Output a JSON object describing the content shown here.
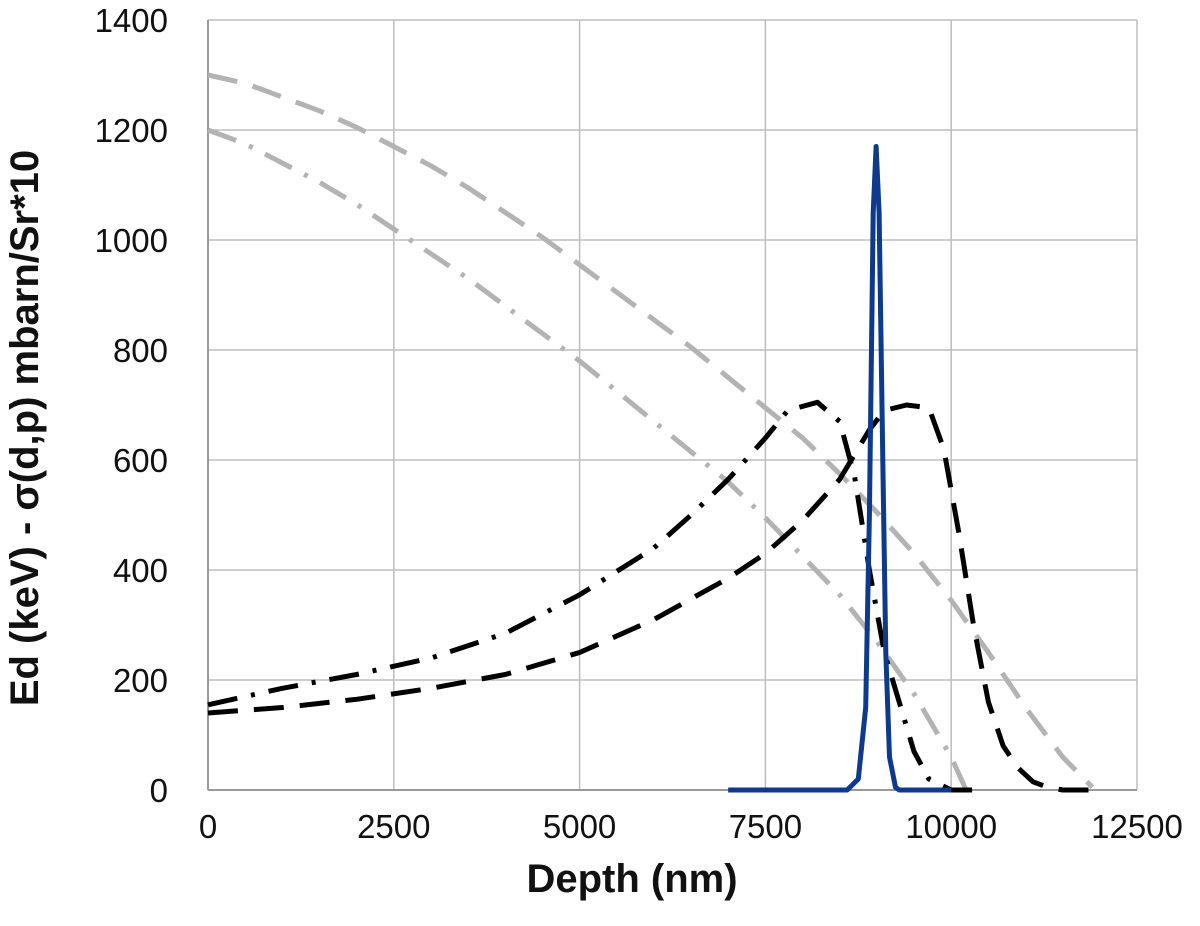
{
  "chart_data": {
    "type": "line",
    "title": "",
    "xlabel": "Depth (nm)",
    "ylabel": "Ed (keV) - σ(d,p) mbarn/Sr*10",
    "xlim": [
      0,
      12500
    ],
    "ylim": [
      0,
      1400
    ],
    "xticks": [
      0,
      2500,
      5000,
      7500,
      10000,
      12500
    ],
    "yticks": [
      0,
      200,
      400,
      600,
      800,
      1000,
      1200,
      1400
    ],
    "grid": true,
    "legend": "none",
    "series": [
      {
        "style": "dash",
        "color": "#b3b3b3",
        "points": [
          [
            0,
            1300
          ],
          [
            500,
            1285
          ],
          [
            1000,
            1260
          ],
          [
            1500,
            1235
          ],
          [
            2000,
            1205
          ],
          [
            2500,
            1170
          ],
          [
            3000,
            1135
          ],
          [
            3500,
            1095
          ],
          [
            4000,
            1050
          ],
          [
            4500,
            1005
          ],
          [
            5000,
            955
          ],
          [
            5500,
            905
          ],
          [
            6000,
            855
          ],
          [
            6500,
            805
          ],
          [
            7000,
            750
          ],
          [
            7500,
            695
          ],
          [
            8000,
            640
          ],
          [
            8500,
            575
          ],
          [
            9000,
            505
          ],
          [
            9500,
            430
          ],
          [
            10000,
            345
          ],
          [
            10500,
            250
          ],
          [
            11000,
            150
          ],
          [
            11500,
            60
          ],
          [
            11900,
            5
          ]
        ]
      },
      {
        "style": "dashdot",
        "color": "#b3b3b3",
        "points": [
          [
            0,
            1200
          ],
          [
            500,
            1175
          ],
          [
            1000,
            1140
          ],
          [
            1500,
            1105
          ],
          [
            2000,
            1065
          ],
          [
            2500,
            1020
          ],
          [
            3000,
            975
          ],
          [
            3500,
            930
          ],
          [
            4000,
            880
          ],
          [
            4500,
            830
          ],
          [
            5000,
            780
          ],
          [
            5500,
            725
          ],
          [
            6000,
            670
          ],
          [
            6500,
            615
          ],
          [
            7000,
            560
          ],
          [
            7500,
            495
          ],
          [
            8000,
            425
          ],
          [
            8500,
            355
          ],
          [
            9000,
            270
          ],
          [
            9500,
            175
          ],
          [
            10000,
            60
          ],
          [
            10200,
            0
          ]
        ]
      },
      {
        "style": "dashdot",
        "color": "#000000",
        "points": [
          [
            0,
            155
          ],
          [
            1000,
            185
          ],
          [
            2000,
            210
          ],
          [
            3000,
            240
          ],
          [
            4000,
            285
          ],
          [
            5000,
            355
          ],
          [
            6000,
            440
          ],
          [
            6500,
            500
          ],
          [
            7000,
            565
          ],
          [
            7500,
            640
          ],
          [
            7800,
            690
          ],
          [
            8200,
            705
          ],
          [
            8500,
            670
          ],
          [
            8700,
            570
          ],
          [
            8900,
            400
          ],
          [
            9100,
            250
          ],
          [
            9300,
            160
          ],
          [
            9500,
            70
          ],
          [
            9700,
            20
          ],
          [
            10000,
            0
          ],
          [
            10300,
            0
          ]
        ]
      },
      {
        "style": "dash",
        "color": "#000000",
        "points": [
          [
            0,
            140
          ],
          [
            1000,
            150
          ],
          [
            2000,
            165
          ],
          [
            3000,
            185
          ],
          [
            4000,
            210
          ],
          [
            5000,
            250
          ],
          [
            6000,
            310
          ],
          [
            7000,
            385
          ],
          [
            7500,
            430
          ],
          [
            8000,
            490
          ],
          [
            8500,
            565
          ],
          [
            8700,
            610
          ],
          [
            8900,
            655
          ],
          [
            9100,
            690
          ],
          [
            9400,
            700
          ],
          [
            9700,
            695
          ],
          [
            9900,
            620
          ],
          [
            10100,
            470
          ],
          [
            10300,
            300
          ],
          [
            10500,
            160
          ],
          [
            10700,
            80
          ],
          [
            10900,
            40
          ],
          [
            11100,
            15
          ],
          [
            11300,
            5
          ],
          [
            11500,
            0
          ],
          [
            11900,
            0
          ]
        ]
      },
      {
        "style": "solid",
        "color": "#0d3a8c",
        "points": [
          [
            7000,
            0
          ],
          [
            8600,
            0
          ],
          [
            8750,
            20
          ],
          [
            8850,
            150
          ],
          [
            8900,
            500
          ],
          [
            8950,
            1050
          ],
          [
            8990,
            1170
          ],
          [
            9030,
            1050
          ],
          [
            9080,
            600
          ],
          [
            9120,
            250
          ],
          [
            9170,
            60
          ],
          [
            9250,
            5
          ],
          [
            9300,
            0
          ],
          [
            10000,
            0
          ]
        ]
      }
    ]
  }
}
